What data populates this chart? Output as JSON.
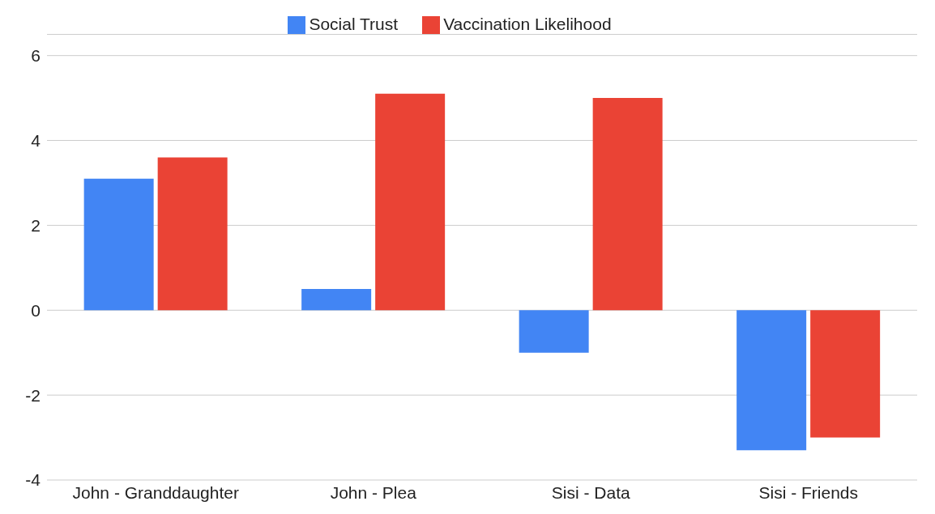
{
  "chart_data": {
    "type": "bar",
    "categories": [
      "John - Granddaughter",
      "John - Plea",
      "Sisi - Data",
      "Sisi - Friends"
    ],
    "series": [
      {
        "name": "Social Trust",
        "color": "#4285f4",
        "values": [
          3.1,
          0.5,
          -1.0,
          -3.3
        ]
      },
      {
        "name": "Vaccination Likelihood",
        "color": "#ea4335",
        "values": [
          3.6,
          5.1,
          5.0,
          -3.0
        ]
      }
    ],
    "ylim": [
      -4,
      6.5
    ],
    "yticks": [
      -4,
      -2,
      0,
      2,
      4,
      6
    ],
    "grid": "y",
    "legend": "top"
  }
}
